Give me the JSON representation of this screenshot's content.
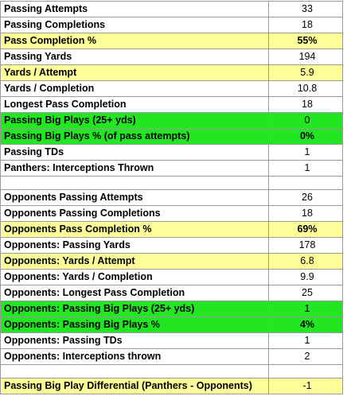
{
  "colors": {
    "yellow": "#ffff99",
    "green": "#22e622",
    "negative": "#e00000",
    "grid": "#9a9a9a"
  },
  "panthers": [
    {
      "label": "Passing Attempts",
      "value": "33"
    },
    {
      "label": "Passing Completions",
      "value": "18"
    },
    {
      "label": "Pass Completion %",
      "value": "55%"
    },
    {
      "label": "Passing Yards",
      "value": "194"
    },
    {
      "label": "Yards / Attempt",
      "value": "5.9"
    },
    {
      "label": "Yards / Completion",
      "value": "10.8"
    },
    {
      "label": "Longest Pass Completion",
      "value": "18"
    },
    {
      "label": "Passing Big Plays (25+ yds)",
      "value": "0"
    },
    {
      "label": "Passing Big Plays  % (of pass attempts)",
      "value": "0%"
    },
    {
      "label": "Passing TDs",
      "value": "1"
    },
    {
      "label": "Panthers: Interceptions Thrown",
      "value": "1"
    }
  ],
  "opponents": [
    {
      "label": "Opponents Passing Attempts",
      "value": "26"
    },
    {
      "label": "Opponents Passing Completions",
      "value": "18"
    },
    {
      "label": "Opponents Pass Completion %",
      "value": "69%"
    },
    {
      "label": "Opponents: Passing Yards",
      "value": "178"
    },
    {
      "label": "Opponents: Yards / Attempt",
      "value": "6.8"
    },
    {
      "label": "Opponents: Yards / Completion",
      "value": "9.9"
    },
    {
      "label": "Opponents: Longest Pass Completion",
      "value": "25"
    },
    {
      "label": "Opponents: Passing Big Plays (25+ yds)",
      "value": "1"
    },
    {
      "label": "Opponents: Passing Big Plays  %",
      "value": "4%"
    },
    {
      "label": "Opponents: Passing TDs",
      "value": "1"
    },
    {
      "label": "Opponents:  Interceptions thrown",
      "value": "2"
    }
  ],
  "differential": {
    "label": "Passing Big Play Differential (Panthers - Opponents)",
    "value": "-1"
  }
}
